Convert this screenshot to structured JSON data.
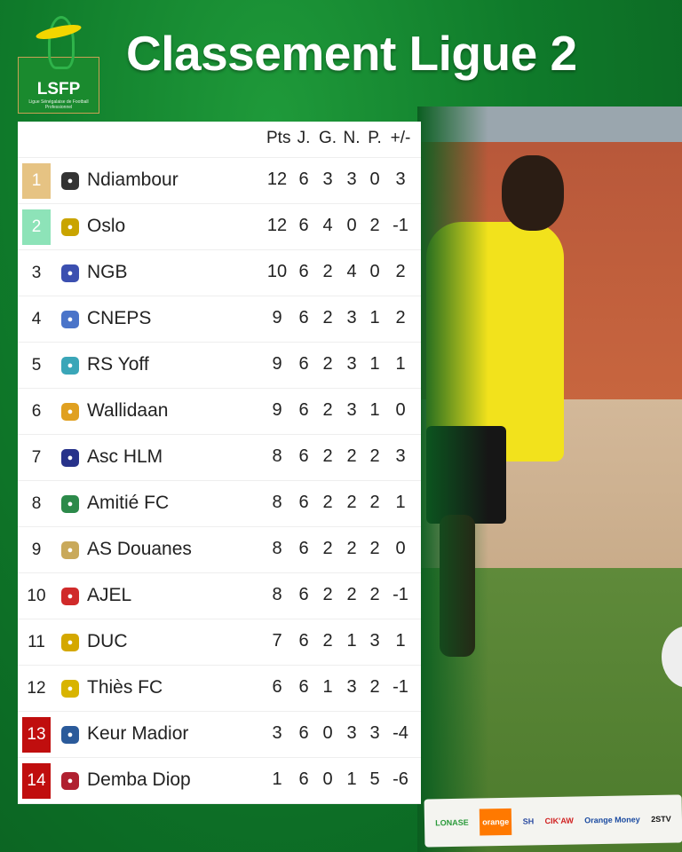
{
  "header": {
    "title": "Classement Ligue 2",
    "logo": {
      "text": "LSFP",
      "subtitle": "Ligue Sénégalaise de Football Professionnel"
    }
  },
  "table": {
    "columns": [
      "Pts",
      "J.",
      "G.",
      "N.",
      "P.",
      "+/-"
    ],
    "colors": {
      "first": "#e6c383",
      "second": "#8de3b8",
      "relegation": "#c00e0e"
    },
    "rows": [
      {
        "rank": "1",
        "team": "Ndiambour",
        "crest": "#333333",
        "stats": [
          "12",
          "6",
          "3",
          "3",
          "0",
          "3"
        ],
        "highlight": "first"
      },
      {
        "rank": "2",
        "team": "Oslo",
        "crest": "#c9a400",
        "stats": [
          "12",
          "6",
          "4",
          "0",
          "2",
          "-1"
        ],
        "highlight": "second"
      },
      {
        "rank": "3",
        "team": "NGB",
        "crest": "#3b4fb0",
        "stats": [
          "10",
          "6",
          "2",
          "4",
          "0",
          "2"
        ]
      },
      {
        "rank": "4",
        "team": "CNEPS",
        "crest": "#4a74c9",
        "stats": [
          "9",
          "6",
          "2",
          "3",
          "1",
          "2"
        ]
      },
      {
        "rank": "5",
        "team": "RS Yoff",
        "crest": "#3aa6b8",
        "stats": [
          "9",
          "6",
          "2",
          "3",
          "1",
          "1"
        ]
      },
      {
        "rank": "6",
        "team": "Wallidaan",
        "crest": "#e0a020",
        "stats": [
          "9",
          "6",
          "2",
          "3",
          "1",
          "0"
        ]
      },
      {
        "rank": "7",
        "team": "Asc HLM",
        "crest": "#27328a",
        "stats": [
          "8",
          "6",
          "2",
          "2",
          "2",
          "3"
        ]
      },
      {
        "rank": "8",
        "team": "Amitié FC",
        "crest": "#2c8a4a",
        "stats": [
          "8",
          "6",
          "2",
          "2",
          "2",
          "1"
        ]
      },
      {
        "rank": "9",
        "team": "AS Douanes",
        "crest": "#c9a95a",
        "stats": [
          "8",
          "6",
          "2",
          "2",
          "2",
          "0"
        ]
      },
      {
        "rank": "10",
        "team": "AJEL",
        "crest": "#d02a2a",
        "stats": [
          "8",
          "6",
          "2",
          "2",
          "2",
          "-1"
        ]
      },
      {
        "rank": "11",
        "team": "DUC",
        "crest": "#d4a800",
        "stats": [
          "7",
          "6",
          "2",
          "1",
          "3",
          "1"
        ]
      },
      {
        "rank": "12",
        "team": "Thiès FC",
        "crest": "#d8b400",
        "stats": [
          "6",
          "6",
          "1",
          "3",
          "2",
          "-1"
        ]
      },
      {
        "rank": "13",
        "team": "Keur Madior",
        "crest": "#2a5a9a",
        "stats": [
          "3",
          "6",
          "0",
          "3",
          "3",
          "-4"
        ],
        "highlight": "relegation"
      },
      {
        "rank": "14",
        "team": "Demba Diop",
        "crest": "#b02030",
        "stats": [
          "1",
          "6",
          "0",
          "1",
          "5",
          "-6"
        ],
        "highlight": "relegation"
      }
    ]
  },
  "sponsors": [
    "LONASE",
    "orange",
    "SH",
    "CIK'AW",
    "Orange Money",
    "2STV"
  ]
}
